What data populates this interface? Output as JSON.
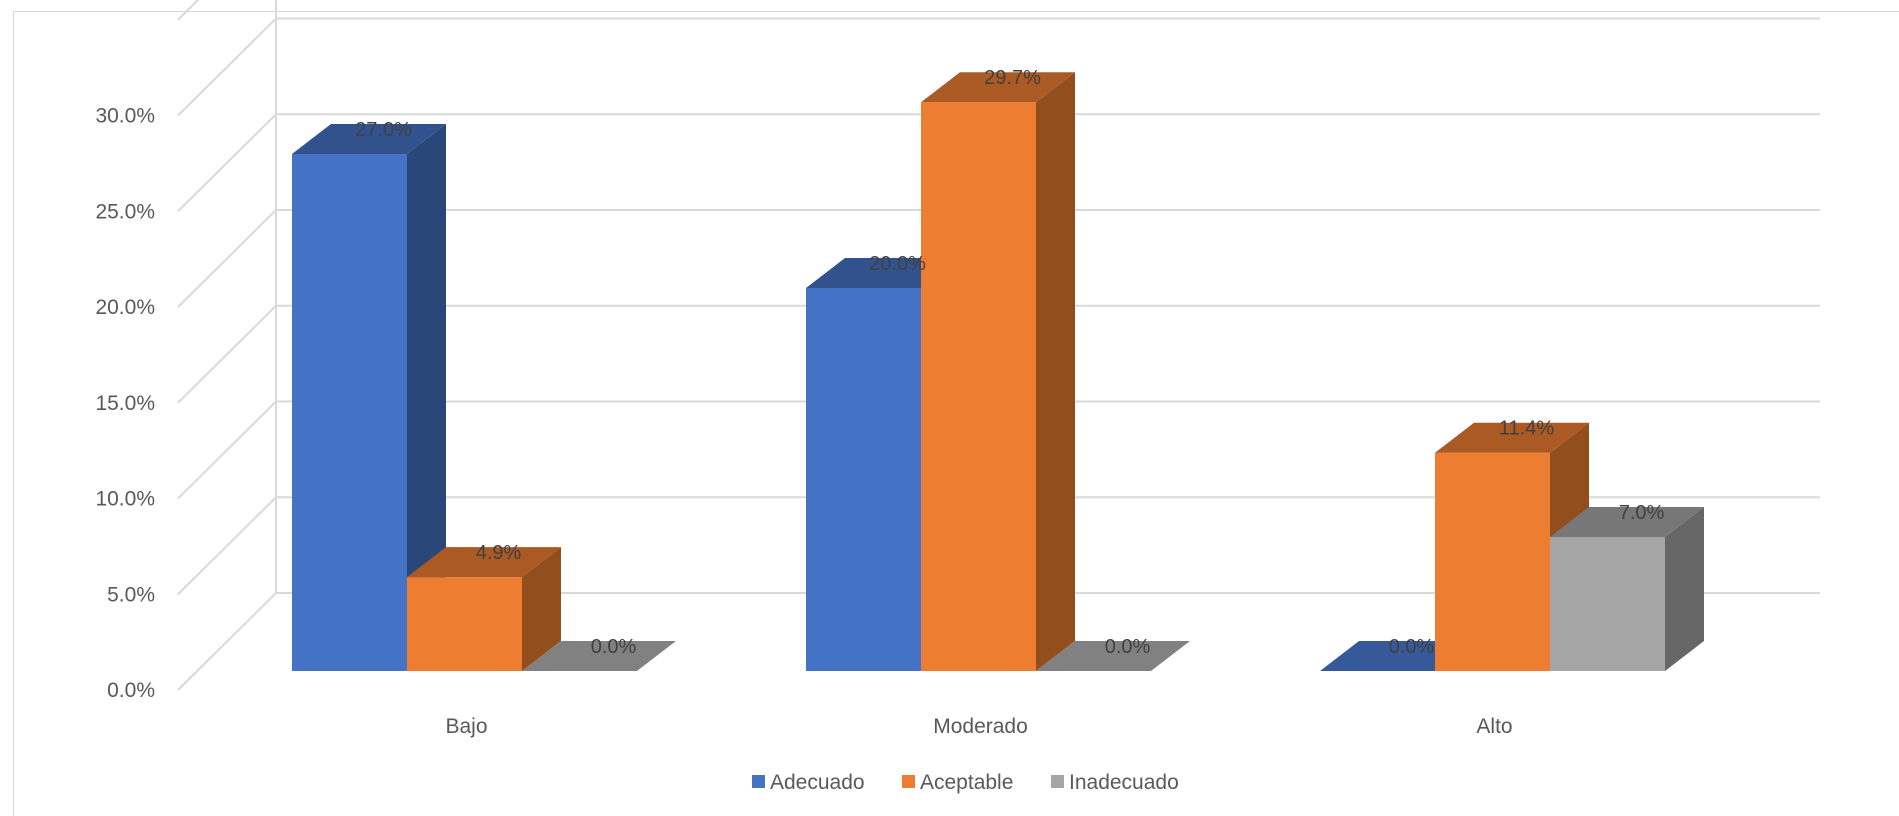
{
  "chart_data": {
    "type": "bar",
    "title": "",
    "xlabel": "",
    "ylabel": "",
    "categories": [
      "Bajo",
      "Moderado",
      "Alto"
    ],
    "series": [
      {
        "name": "Adecuado",
        "values": [
          27.0,
          20.0,
          0.0
        ],
        "labels": [
          "27.0%",
          "20.0%",
          "0.0%"
        ],
        "color": "#4472c4"
      },
      {
        "name": "Aceptable",
        "values": [
          4.9,
          29.7,
          11.4
        ],
        "labels": [
          "4.9%",
          "29.7%",
          "11.4%"
        ],
        "color": "#ed7d31"
      },
      {
        "name": "Inadecuado",
        "values": [
          0.0,
          0.0,
          7.0
        ],
        "labels": [
          "0.0%",
          "0.0%",
          "7.0%"
        ],
        "color": "#a5a5a5"
      }
    ],
    "ylim": [
      0,
      30
    ],
    "yticks": [
      0,
      5,
      10,
      15,
      20,
      25,
      30
    ],
    "ytick_labels": [
      "0.0%",
      "5.0%",
      "10.0%",
      "15.0%",
      "20.0%",
      "25.0%",
      "30.0%"
    ],
    "grid": true,
    "legend": "bottom",
    "style": "3d-clustered-column"
  }
}
